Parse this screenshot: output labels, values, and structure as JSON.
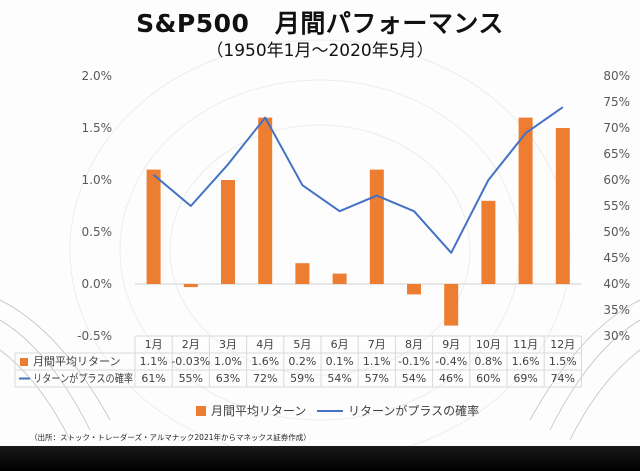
{
  "title": "S&P500　月間パフォーマンス",
  "subtitle": "（1950年1月～2020年5月）",
  "source": "（出所：ストック・トレーダーズ・アルマナック2021年からマネックス証券作成）",
  "chart_data": {
    "type": "bar+line",
    "categories": [
      "1月",
      "2月",
      "3月",
      "4月",
      "5月",
      "6月",
      "7月",
      "8月",
      "9月",
      "10月",
      "11月",
      "12月"
    ],
    "series": [
      {
        "name": "月間平均リターン",
        "kind": "bar",
        "axis": "left",
        "color": "#ED7D31",
        "values": [
          1.1,
          -0.03,
          1.0,
          1.6,
          0.2,
          0.1,
          1.1,
          -0.1,
          -0.4,
          0.8,
          1.6,
          1.5
        ],
        "labels": [
          "1.1%",
          "-0.03%",
          "1.0%",
          "1.6%",
          "0.2%",
          "0.1%",
          "1.1%",
          "-0.1%",
          "-0.4%",
          "0.8%",
          "1.6%",
          "1.5%"
        ]
      },
      {
        "name": "リターンがプラスの確率",
        "kind": "line",
        "axis": "right",
        "color": "#4472C4",
        "values": [
          61,
          55,
          63,
          72,
          59,
          54,
          57,
          54,
          46,
          60,
          69,
          74
        ],
        "labels": [
          "61%",
          "55%",
          "63%",
          "72%",
          "59%",
          "54%",
          "57%",
          "54%",
          "46%",
          "60%",
          "69%",
          "74%"
        ]
      }
    ],
    "y_left": {
      "min": -0.5,
      "max": 2.0,
      "step": 0.5,
      "ticks": [
        "-0.5%",
        "0.0%",
        "0.5%",
        "1.0%",
        "1.5%",
        "2.0%"
      ]
    },
    "y_right": {
      "min": 30,
      "max": 80,
      "step": 5,
      "ticks": [
        "30%",
        "35%",
        "40%",
        "45%",
        "50%",
        "55%",
        "60%",
        "65%",
        "70%",
        "75%",
        "80%"
      ]
    },
    "grid": false,
    "legend": "bottom",
    "data_table": true
  }
}
